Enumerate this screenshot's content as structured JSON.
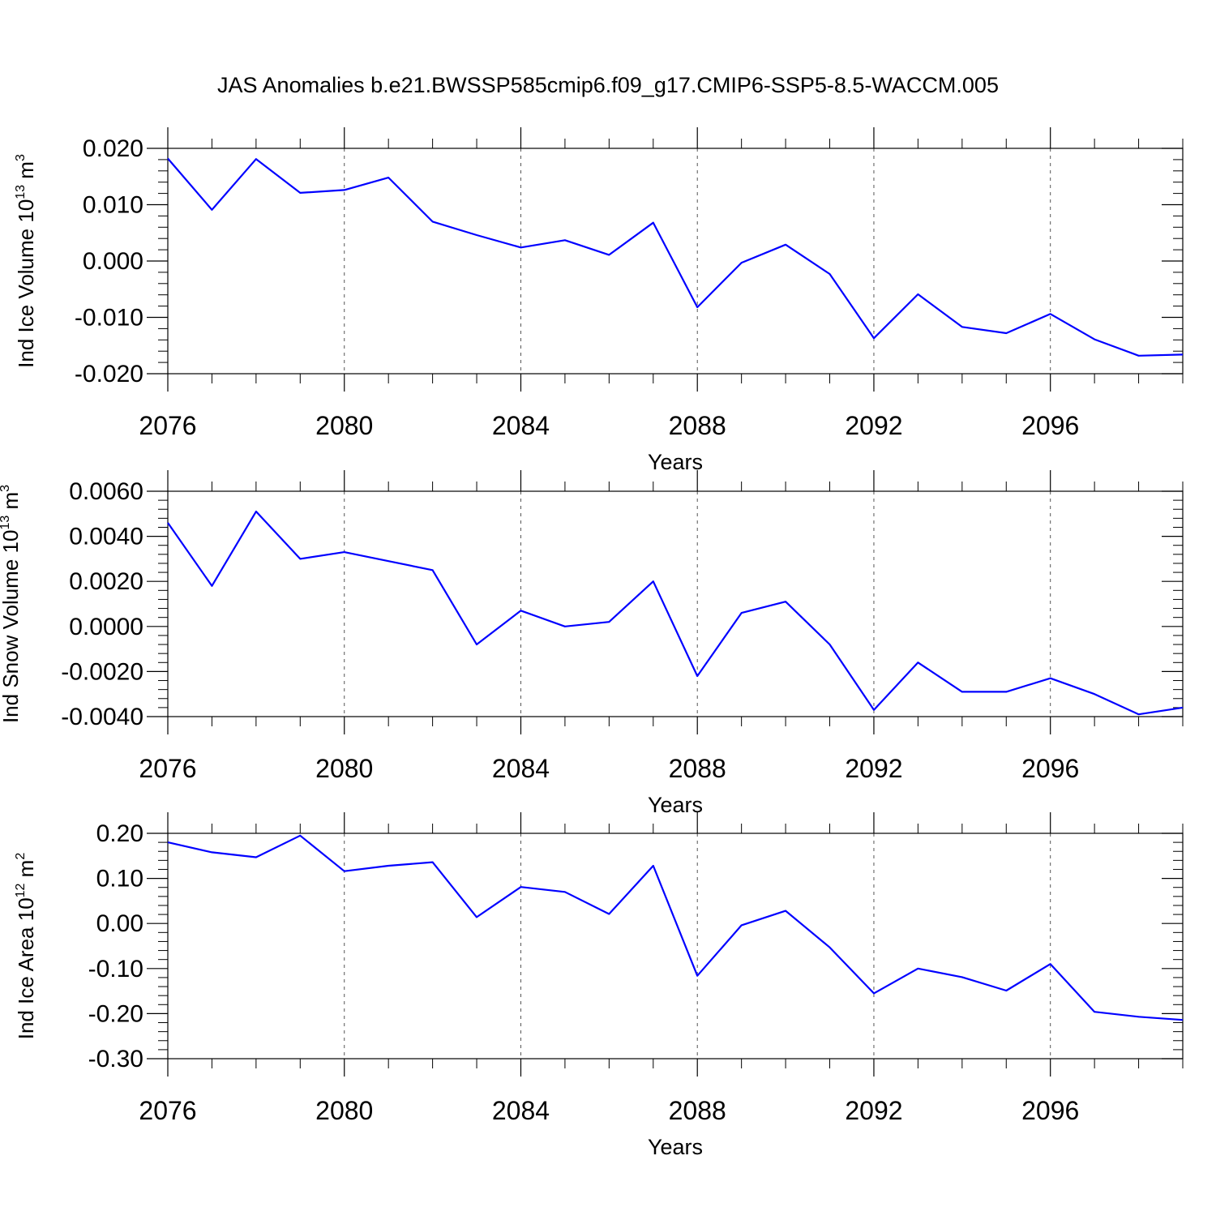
{
  "figure_title": "JAS Anomalies b.e21.BWSSP585cmip6.f09_g17.CMIP6-SSP5-8.5-WACCM.005",
  "colors": {
    "series": "#0000ff",
    "axis": "#000000",
    "grid": "#555555"
  },
  "chart_data": [
    {
      "type": "line",
      "ylabel": {
        "main": "Ind Ice Volume 10",
        "sup": "13",
        "unit": " m",
        "unit_sup": "3"
      },
      "xlabel": "Years",
      "xlim": [
        2076,
        2099
      ],
      "ylim": [
        -0.02,
        0.02
      ],
      "yticks": [
        -0.02,
        -0.01,
        0.0,
        0.01,
        0.02
      ],
      "ytick_labels": [
        "-0.020",
        "-0.010",
        "0.000",
        "0.010",
        "0.020"
      ],
      "xticks": [
        2076,
        2080,
        2084,
        2088,
        2092,
        2096
      ],
      "xtick_labels": [
        "2076",
        "2080",
        "2084",
        "2088",
        "2092",
        "2096"
      ],
      "grid": "vertical dashed at major x ticks",
      "series": [
        {
          "x": [
            2076,
            2077,
            2078,
            2079,
            2080,
            2081,
            2082,
            2083,
            2084,
            2085,
            2086,
            2087,
            2088,
            2089,
            2090,
            2091,
            2092,
            2093,
            2094,
            2095,
            2096,
            2097,
            2098,
            2099
          ],
          "values": [
            0.0182,
            0.0091,
            0.0181,
            0.0121,
            0.0126,
            0.0148,
            0.007,
            0.0046,
            0.0024,
            0.0037,
            0.0011,
            0.0068,
            -0.0082,
            -0.0003,
            0.0029,
            -0.0023,
            -0.0137,
            -0.0059,
            -0.0117,
            -0.0128,
            -0.0094,
            -0.0139,
            -0.0168,
            -0.0166
          ]
        }
      ]
    },
    {
      "type": "line",
      "ylabel": {
        "main": "Ind Snow Volume 10",
        "sup": "13",
        "unit": " m",
        "unit_sup": "3"
      },
      "xlabel": "Years",
      "xlim": [
        2076,
        2099
      ],
      "ylim": [
        -0.004,
        0.006
      ],
      "yticks": [
        -0.004,
        -0.002,
        0.0,
        0.002,
        0.004,
        0.006
      ],
      "ytick_labels": [
        "-0.0040",
        "-0.0020",
        "0.0000",
        "0.0020",
        "0.0040",
        "0.0060"
      ],
      "xticks": [
        2076,
        2080,
        2084,
        2088,
        2092,
        2096
      ],
      "xtick_labels": [
        "2076",
        "2080",
        "2084",
        "2088",
        "2092",
        "2096"
      ],
      "grid": "vertical dashed at major x ticks",
      "series": [
        {
          "x": [
            2076,
            2077,
            2078,
            2079,
            2080,
            2081,
            2082,
            2083,
            2084,
            2085,
            2086,
            2087,
            2088,
            2089,
            2090,
            2091,
            2092,
            2093,
            2094,
            2095,
            2096,
            2097,
            2098,
            2099
          ],
          "values": [
            0.0046,
            0.0018,
            0.0051,
            0.003,
            0.0033,
            0.0029,
            0.0025,
            -0.0008,
            0.0007,
            0.0,
            0.0002,
            0.002,
            -0.0022,
            0.0006,
            0.0011,
            -0.0008,
            -0.0037,
            -0.0016,
            -0.0029,
            -0.0029,
            -0.0023,
            -0.003,
            -0.0039,
            -0.0036
          ]
        }
      ]
    },
    {
      "type": "line",
      "ylabel": {
        "main": "Ind Ice Area 10",
        "sup": "12",
        "unit": " m",
        "unit_sup": "2"
      },
      "xlabel": "Years",
      "xlim": [
        2076,
        2099
      ],
      "ylim": [
        -0.3,
        0.2
      ],
      "yticks": [
        -0.3,
        -0.2,
        -0.1,
        0.0,
        0.1,
        0.2
      ],
      "ytick_labels": [
        "-0.30",
        "-0.20",
        "-0.10",
        "0.00",
        "0.10",
        "0.20"
      ],
      "xticks": [
        2076,
        2080,
        2084,
        2088,
        2092,
        2096
      ],
      "xtick_labels": [
        "2076",
        "2080",
        "2084",
        "2088",
        "2092",
        "2096"
      ],
      "grid": "vertical dashed at major x ticks",
      "series": [
        {
          "x": [
            2076,
            2077,
            2078,
            2079,
            2080,
            2081,
            2082,
            2083,
            2084,
            2085,
            2086,
            2087,
            2088,
            2089,
            2090,
            2091,
            2092,
            2093,
            2094,
            2095,
            2096,
            2097,
            2098,
            2099
          ],
          "values": [
            0.18,
            0.158,
            0.147,
            0.195,
            0.116,
            0.128,
            0.136,
            0.014,
            0.081,
            0.07,
            0.021,
            0.128,
            -0.116,
            -0.004,
            0.028,
            -0.053,
            -0.155,
            -0.1,
            -0.119,
            -0.149,
            -0.09,
            -0.196,
            -0.207,
            -0.214
          ]
        }
      ]
    }
  ]
}
